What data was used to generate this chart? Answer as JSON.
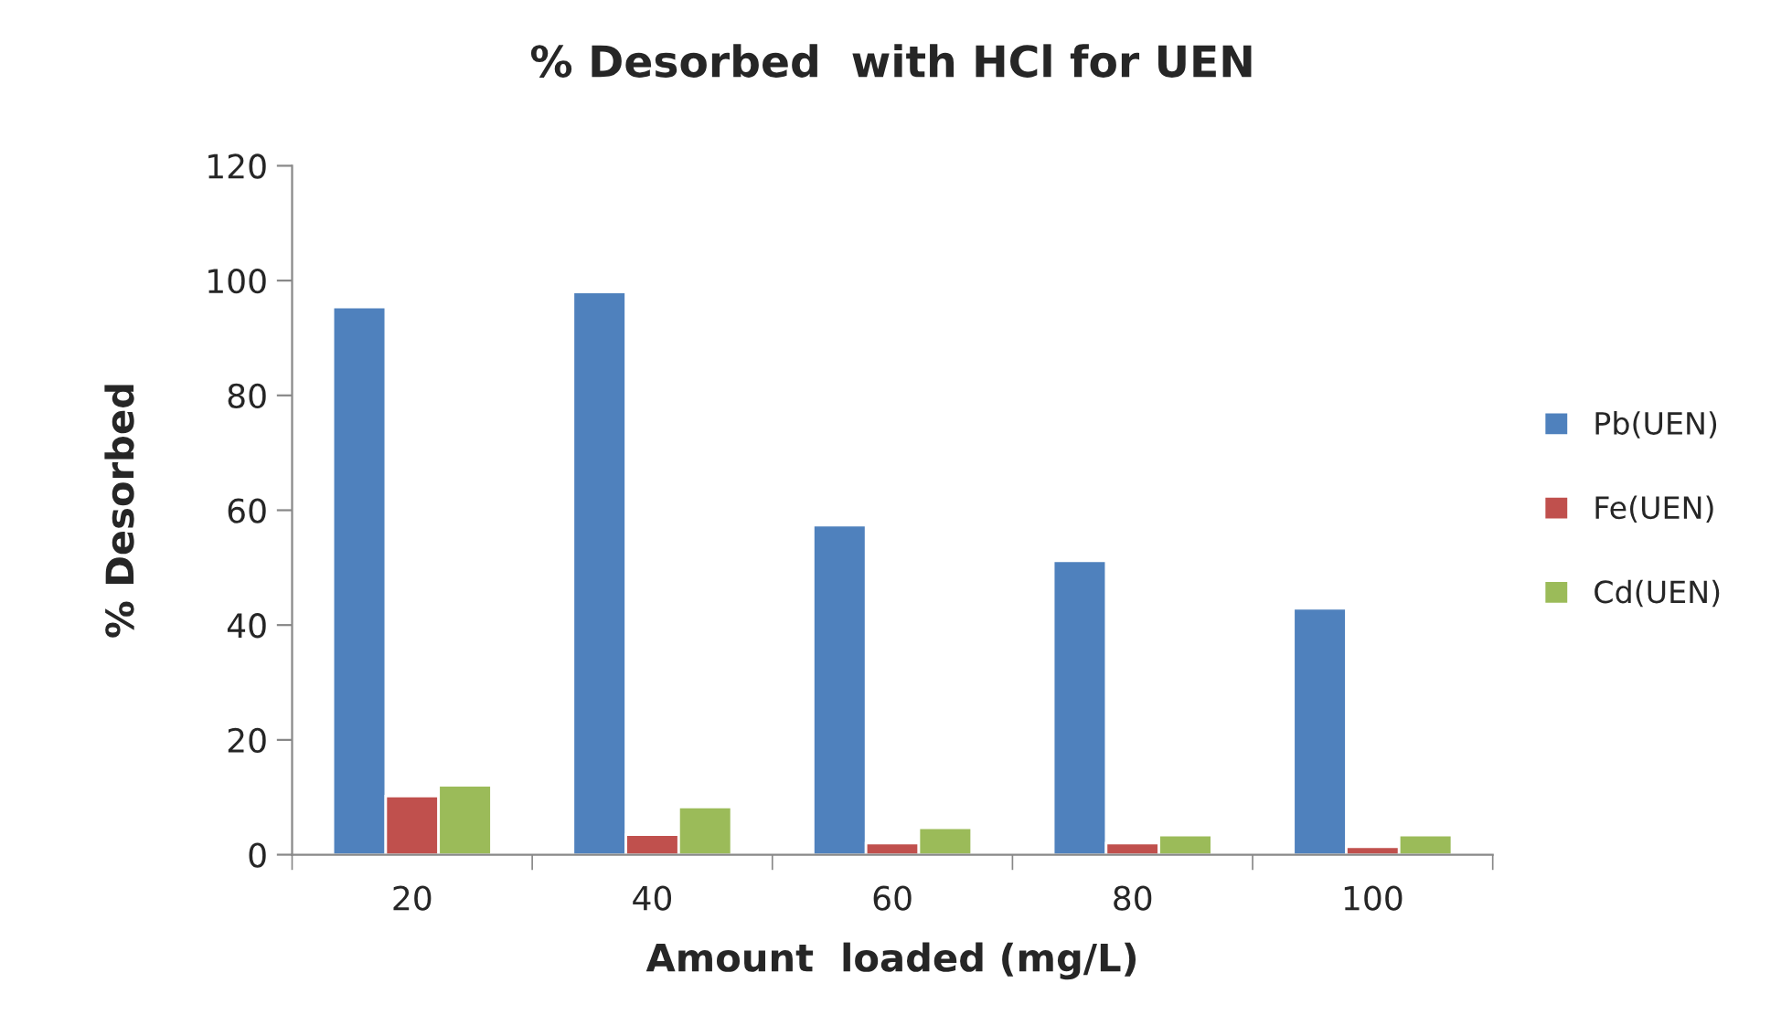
{
  "chart_data": {
    "type": "bar",
    "title": "% Desorbed  with HCl for UEN",
    "xlabel": "Amount  loaded (mg/L)",
    "ylabel": "% Desorbed",
    "categories": [
      "20",
      "40",
      "60",
      "80",
      "100"
    ],
    "series": [
      {
        "name": "Pb(UEN)",
        "color": "#4f81bd",
        "values": [
          95.4,
          98,
          57.4,
          51.2,
          42.9
        ]
      },
      {
        "name": "Fe(UEN)",
        "color": "#c0504d",
        "values": [
          10.2,
          3.5,
          2,
          2,
          1.4
        ]
      },
      {
        "name": "Cd(UEN)",
        "color": "#9bbb59",
        "values": [
          12.1,
          8.3,
          4.7,
          3.4,
          3.4
        ]
      }
    ],
    "ylim": [
      0,
      120
    ],
    "yticks": [
      0,
      20,
      40,
      60,
      80,
      100,
      120
    ],
    "grid": false,
    "legend": "right"
  }
}
